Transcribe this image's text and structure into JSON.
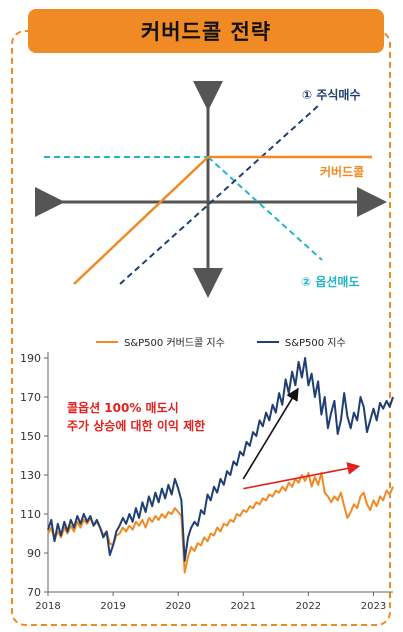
{
  "title": "커버드콜 전략",
  "diagram": {
    "labels": {
      "stock_buy": "① 주식매수",
      "covered_call": "커버드콜",
      "option_sell": "② 옵션매도"
    },
    "colors": {
      "stock_buy": "#1f3f73",
      "covered_call": "#f08a24",
      "option_sell": "#23b5c9",
      "axes": "#555555"
    }
  },
  "chart_data": {
    "type": "line",
    "title": "",
    "xlabel": "",
    "ylabel": "",
    "ylim": [
      70,
      190
    ],
    "yticks": [
      70,
      90,
      110,
      130,
      150,
      170,
      190
    ],
    "xticks": [
      "2018",
      "2019",
      "2020",
      "2021",
      "2022",
      "2023"
    ],
    "xlim": [
      2018,
      2023.3
    ],
    "grid": false,
    "legend_position": "top",
    "series": [
      {
        "name": "S&P500 커버드콜 지수",
        "color": "#f08a24",
        "x": [
          2018.0,
          2018.05,
          2018.1,
          2018.15,
          2018.2,
          2018.25,
          2018.3,
          2018.35,
          2018.4,
          2018.45,
          2018.5,
          2018.55,
          2018.6,
          2018.65,
          2018.7,
          2018.75,
          2018.8,
          2018.85,
          2018.9,
          2018.95,
          2019.0,
          2019.05,
          2019.1,
          2019.15,
          2019.2,
          2019.25,
          2019.3,
          2019.35,
          2019.4,
          2019.45,
          2019.5,
          2019.55,
          2019.6,
          2019.65,
          2019.7,
          2019.75,
          2019.8,
          2019.85,
          2019.9,
          2019.95,
          2020.0,
          2020.05,
          2020.1,
          2020.15,
          2020.2,
          2020.25,
          2020.3,
          2020.35,
          2020.4,
          2020.45,
          2020.5,
          2020.55,
          2020.6,
          2020.65,
          2020.7,
          2020.75,
          2020.8,
          2020.85,
          2020.9,
          2020.95,
          2021.0,
          2021.05,
          2021.1,
          2021.15,
          2021.2,
          2021.25,
          2021.3,
          2021.35,
          2021.4,
          2021.45,
          2021.5,
          2021.55,
          2021.6,
          2021.65,
          2021.7,
          2021.75,
          2021.8,
          2021.85,
          2021.9,
          2021.95,
          2022.0,
          2022.05,
          2022.1,
          2022.15,
          2022.2,
          2022.25,
          2022.3,
          2022.35,
          2022.4,
          2022.45,
          2022.5,
          2022.55,
          2022.6,
          2022.65,
          2022.7,
          2022.75,
          2022.8,
          2022.85,
          2022.9,
          2022.95,
          2023.0,
          2023.05,
          2023.1,
          2023.15,
          2023.2,
          2023.25,
          2023.3
        ],
        "values": [
          100,
          103,
          97,
          101,
          98,
          103,
          100,
          104,
          101,
          106,
          103,
          107,
          105,
          108,
          104,
          106,
          103,
          99,
          101,
          95,
          94,
          99,
          100,
          103,
          101,
          104,
          102,
          106,
          104,
          107,
          103,
          108,
          106,
          109,
          107,
          110,
          108,
          111,
          110,
          113,
          111,
          109,
          80,
          88,
          93,
          91,
          95,
          94,
          98,
          96,
          100,
          99,
          103,
          101,
          105,
          104,
          107,
          106,
          110,
          109,
          112,
          111,
          114,
          113,
          116,
          115,
          118,
          117,
          120,
          119,
          122,
          121,
          124,
          122,
          126,
          124,
          128,
          126,
          130,
          127,
          131,
          124,
          129,
          125,
          131,
          121,
          119,
          116,
          119,
          117,
          121,
          114,
          108,
          111,
          115,
          113,
          119,
          121,
          115,
          112,
          117,
          114,
          119,
          117,
          122,
          120,
          124
        ]
      },
      {
        "name": "S&P500 지수",
        "color": "#1f3f73",
        "x": [
          2018.0,
          2018.05,
          2018.1,
          2018.15,
          2018.2,
          2018.25,
          2018.3,
          2018.35,
          2018.4,
          2018.45,
          2018.5,
          2018.55,
          2018.6,
          2018.65,
          2018.7,
          2018.75,
          2018.8,
          2018.85,
          2018.9,
          2018.95,
          2019.0,
          2019.05,
          2019.1,
          2019.15,
          2019.2,
          2019.25,
          2019.3,
          2019.35,
          2019.4,
          2019.45,
          2019.5,
          2019.55,
          2019.6,
          2019.65,
          2019.7,
          2019.75,
          2019.8,
          2019.85,
          2019.9,
          2019.95,
          2020.0,
          2020.05,
          2020.1,
          2020.15,
          2020.2,
          2020.25,
          2020.3,
          2020.35,
          2020.4,
          2020.45,
          2020.5,
          2020.55,
          2020.6,
          2020.65,
          2020.7,
          2020.75,
          2020.8,
          2020.85,
          2020.9,
          2020.95,
          2021.0,
          2021.05,
          2021.1,
          2021.15,
          2021.2,
          2021.25,
          2021.3,
          2021.35,
          2021.4,
          2021.45,
          2021.5,
          2021.55,
          2021.6,
          2021.65,
          2021.7,
          2021.75,
          2021.8,
          2021.85,
          2021.9,
          2021.95,
          2022.0,
          2022.05,
          2022.1,
          2022.15,
          2022.2,
          2022.25,
          2022.3,
          2022.35,
          2022.4,
          2022.45,
          2022.5,
          2022.55,
          2022.6,
          2022.65,
          2022.7,
          2022.75,
          2022.8,
          2022.85,
          2022.9,
          2022.95,
          2023.0,
          2023.05,
          2023.1,
          2023.15,
          2023.2,
          2023.25,
          2023.3
        ],
        "values": [
          102,
          107,
          96,
          105,
          99,
          106,
          101,
          107,
          103,
          109,
          105,
          110,
          106,
          109,
          104,
          107,
          103,
          98,
          101,
          89,
          94,
          101,
          104,
          108,
          105,
          110,
          106,
          113,
          108,
          116,
          111,
          119,
          114,
          121,
          116,
          123,
          118,
          125,
          120,
          128,
          123,
          117,
          86,
          98,
          103,
          106,
          104,
          112,
          110,
          120,
          117,
          124,
          121,
          128,
          125,
          132,
          130,
          137,
          135,
          142,
          140,
          147,
          145,
          152,
          150,
          158,
          155,
          162,
          158,
          166,
          162,
          172,
          166,
          179,
          172,
          183,
          176,
          188,
          180,
          190,
          176,
          182,
          170,
          178,
          161,
          170,
          154,
          162,
          168,
          151,
          158,
          172,
          160,
          154,
          162,
          158,
          170,
          165,
          152,
          158,
          164,
          158,
          167,
          164,
          168,
          165,
          170
        ]
      }
    ]
  },
  "annotation": {
    "line1": "콜옵션 100% 매도시",
    "line2": "주가 상승에 대한 이익 제한",
    "color": "#e3201b"
  }
}
